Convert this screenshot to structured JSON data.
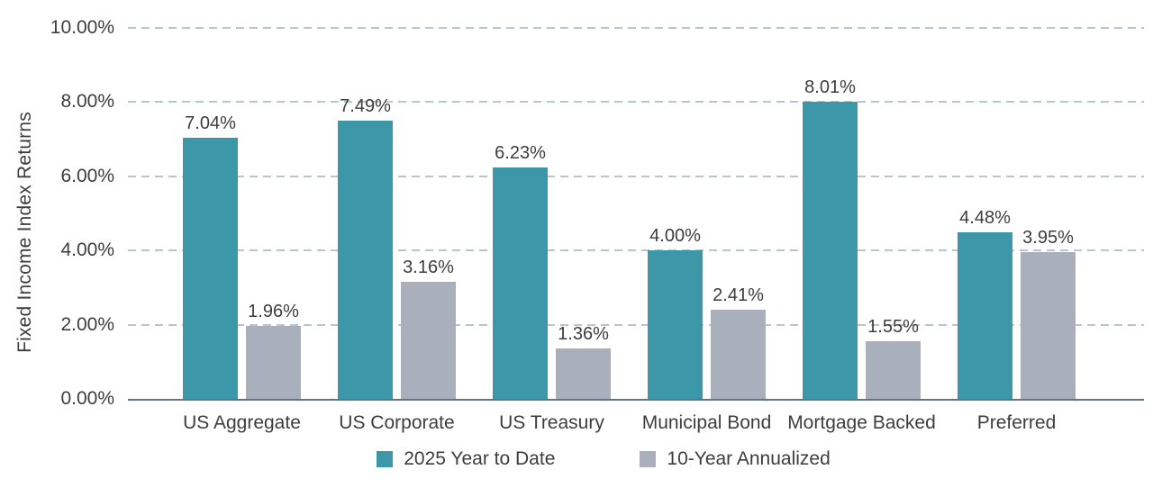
{
  "chart_data": {
    "type": "bar",
    "title": "",
    "ylabel": "Fixed Income Index Returns",
    "xlabel": "",
    "categories": [
      "US Aggregate",
      "US Corporate",
      "US Treasury",
      "Municipal Bond",
      "Mortgage Backed",
      "Preferred"
    ],
    "series": [
      {
        "name": "2025 Year to Date",
        "color": "#3C98A8",
        "values": [
          7.04,
          7.49,
          6.23,
          4.0,
          8.01,
          4.48
        ],
        "display": [
          "7.04%",
          "7.49%",
          "6.23%",
          "4.00%",
          "8.01%",
          "4.48%"
        ]
      },
      {
        "name": "10-Year Annualized",
        "color": "#A9B0BB",
        "values": [
          1.96,
          3.16,
          1.36,
          2.41,
          1.55,
          3.95
        ],
        "display": [
          "1.96%",
          "3.16%",
          "1.36%",
          "2.41%",
          "1.55%",
          "3.95%"
        ]
      }
    ],
    "y_ticks": [
      "0.00%",
      "2.00%",
      "4.00%",
      "6.00%",
      "8.00%",
      "10.00%"
    ],
    "ylim": [
      0,
      10
    ],
    "grid": "horizontal-dashed",
    "legend_position": "bottom"
  },
  "style": {
    "grid_color": "#BAC3CE",
    "axis_color": "#627585",
    "text_color": "#3D3D3D",
    "background": "#FFFFFF"
  }
}
